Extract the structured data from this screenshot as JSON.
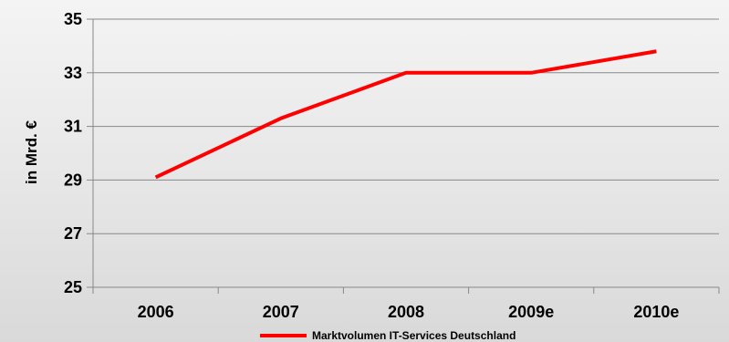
{
  "chart_data": {
    "type": "line",
    "title": "",
    "xlabel": "",
    "ylabel": "in Mrd. €",
    "categories": [
      "2006",
      "2007",
      "2008",
      "2009e",
      "2010e"
    ],
    "series": [
      {
        "name": "Marktvolumen IT-Services Deutschland",
        "values": [
          29.1,
          31.3,
          33.0,
          33.0,
          33.8
        ],
        "color": "#ff0000"
      }
    ],
    "ylim": [
      25,
      35
    ],
    "yticks": [
      "25",
      "27",
      "29",
      "31",
      "33",
      "35"
    ],
    "grid": true,
    "legend_position": "bottom"
  },
  "colors": {
    "grid": "#888888",
    "axis": "#888888",
    "series": "#ff0000"
  }
}
